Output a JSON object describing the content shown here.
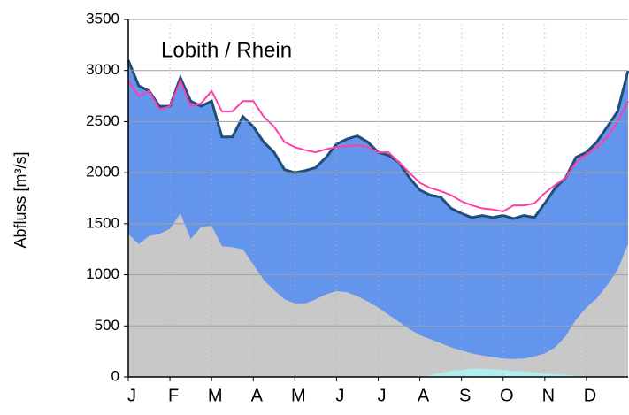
{
  "chart_data": {
    "type": "area",
    "title": "Lobith / Rhein",
    "y_label": "Abfluss [m³/s]",
    "x": [
      0,
      0.25,
      0.5,
      0.75,
      1,
      1.25,
      1.5,
      1.75,
      2,
      2.25,
      2.5,
      2.75,
      3,
      3.25,
      3.5,
      3.75,
      4,
      4.25,
      4.5,
      4.75,
      5,
      5.25,
      5.5,
      5.75,
      6,
      6.25,
      6.5,
      6.75,
      7,
      7.25,
      7.5,
      7.75,
      8,
      8.25,
      8.5,
      8.75,
      9,
      9.25,
      9.5,
      9.75,
      10,
      10.25,
      10.5,
      10.75,
      11,
      11.25,
      11.5,
      11.75,
      12
    ],
    "xlim": [
      0,
      12
    ],
    "xticks": [
      {
        "value": 0,
        "label": "J"
      },
      {
        "value": 1,
        "label": "F"
      },
      {
        "value": 2,
        "label": "M"
      },
      {
        "value": 3,
        "label": "A"
      },
      {
        "value": 4,
        "label": "M"
      },
      {
        "value": 5,
        "label": "J"
      },
      {
        "value": 6,
        "label": "J"
      },
      {
        "value": 7,
        "label": "A"
      },
      {
        "value": 8,
        "label": "S"
      },
      {
        "value": 9,
        "label": "O"
      },
      {
        "value": 10,
        "label": "N"
      },
      {
        "value": 11,
        "label": "D"
      }
    ],
    "ylim": [
      0,
      3500
    ],
    "yticks": [
      0,
      500,
      1000,
      1500,
      2000,
      2500,
      3000,
      3500
    ],
    "grid": true,
    "series": [
      {
        "style": "area",
        "color": "#6495ed",
        "line_color": "#1f4e79",
        "values": [
          3100,
          2850,
          2800,
          2650,
          2650,
          2930,
          2700,
          2650,
          2700,
          2350,
          2350,
          2550,
          2450,
          2300,
          2200,
          2030,
          2000,
          2020,
          2050,
          2150,
          2280,
          2330,
          2360,
          2300,
          2200,
          2170,
          2100,
          1950,
          1830,
          1780,
          1760,
          1650,
          1600,
          1560,
          1580,
          1560,
          1580,
          1550,
          1580,
          1560,
          1700,
          1850,
          1950,
          2150,
          2200,
          2300,
          2450,
          2600,
          3000
        ]
      },
      {
        "style": "area",
        "color": "#c8c8c8",
        "values": [
          1400,
          1300,
          1380,
          1400,
          1450,
          1600,
          1350,
          1470,
          1480,
          1280,
          1270,
          1250,
          1100,
          950,
          850,
          760,
          720,
          720,
          760,
          810,
          840,
          830,
          790,
          740,
          680,
          610,
          540,
          470,
          410,
          370,
          330,
          290,
          260,
          230,
          210,
          195,
          180,
          175,
          180,
          200,
          230,
          290,
          400,
          560,
          680,
          770,
          900,
          1050,
          1300
        ]
      },
      {
        "style": "area",
        "color": "#aeeeee",
        "values": [
          0,
          0,
          0,
          0,
          0,
          0,
          0,
          0,
          0,
          0,
          0,
          0,
          0,
          0,
          0,
          0,
          0,
          0,
          0,
          0,
          0,
          0,
          0,
          0,
          0,
          0,
          0,
          0,
          0,
          20,
          40,
          60,
          70,
          80,
          80,
          75,
          70,
          60,
          55,
          45,
          35,
          25,
          20,
          10,
          0,
          0,
          0,
          0,
          0
        ]
      },
      {
        "style": "line",
        "color": "#ff3fa8",
        "values": [
          2900,
          2750,
          2800,
          2620,
          2650,
          2900,
          2650,
          2680,
          2800,
          2600,
          2600,
          2700,
          2700,
          2550,
          2450,
          2300,
          2250,
          2220,
          2200,
          2230,
          2250,
          2260,
          2270,
          2250,
          2200,
          2200,
          2100,
          2000,
          1900,
          1850,
          1820,
          1780,
          1720,
          1680,
          1650,
          1640,
          1620,
          1680,
          1680,
          1700,
          1800,
          1880,
          1950,
          2100,
          2180,
          2250,
          2350,
          2500,
          2700
        ]
      }
    ]
  }
}
